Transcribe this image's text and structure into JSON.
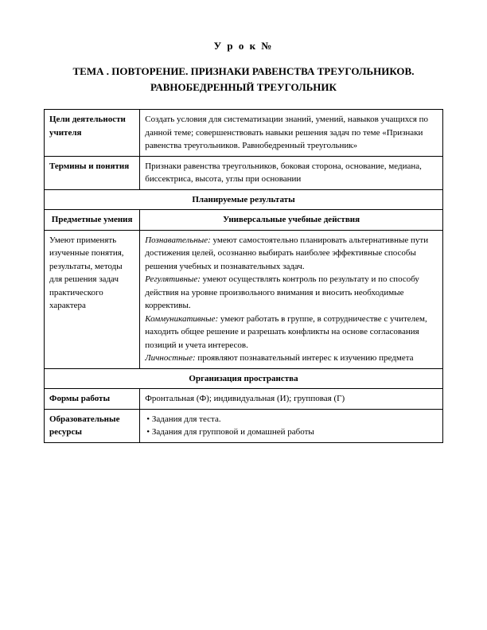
{
  "header": {
    "lesson_label": "У р о к  №",
    "title_line1": "ТЕМА . ПОВТОРЕНИЕ. ПРИЗНАКИ РАВЕНСТВА ТРЕУГОЛЬНИКОВ.",
    "title_line2": "РАВНОБЕДРЕННЫЙ ТРЕУГОЛЬНИК"
  },
  "table": {
    "row1": {
      "label": "Цели деятельности учителя",
      "content": "Создать условия для систематизации знаний, умений, навыков учащихся по данной теме; совершенствовать навыки решения задач по теме «Признаки равенства треугольников. Равнобедренный треугольник»"
    },
    "row2": {
      "label": "Термины и понятия",
      "content": "Признаки равенства треугольников, боковая сторона, основание, медиана, биссектриса, высота, углы при основании"
    },
    "section1": "Планируемые результаты",
    "subheader": {
      "left": "Предметные умения",
      "right": "Универсальные учебные действия"
    },
    "row3": {
      "label": "Умеют применять изученные понятия, результаты, методы для решения задач практического характера",
      "poznav_label": "Познавательные:",
      "poznav_text": " умеют самостоятельно планировать альтернативные пути достижения целей, осознанно выбирать наиболее эффективные способы решения учебных и познавательных задач.",
      "regul_label": "Регулятивные:",
      "regul_text": " умеют осуществлять контроль по результату и по способу действия на уровне произвольного внимания и вносить необходимые коррективы.",
      "komm_label": "Коммуникативные:",
      "komm_text": " умеют работать в группе, в сотрудничестве с учителем, находить общее решение и разрешать конфликты на основе согласования позиций и учета интересов.",
      "lich_label": "Личностные:",
      "lich_text": " проявляют познавательный интерес к изучению предмета"
    },
    "section2": "Организация пространства",
    "row4": {
      "label": "Формы работы",
      "content": "Фронтальная (Ф); индивидуальная (И); групповая (Г)"
    },
    "row5": {
      "label": "Образовательные ресурсы",
      "bullet1": "• Задания для теста.",
      "bullet2": "• Задания для групповой и домашней работы"
    }
  }
}
